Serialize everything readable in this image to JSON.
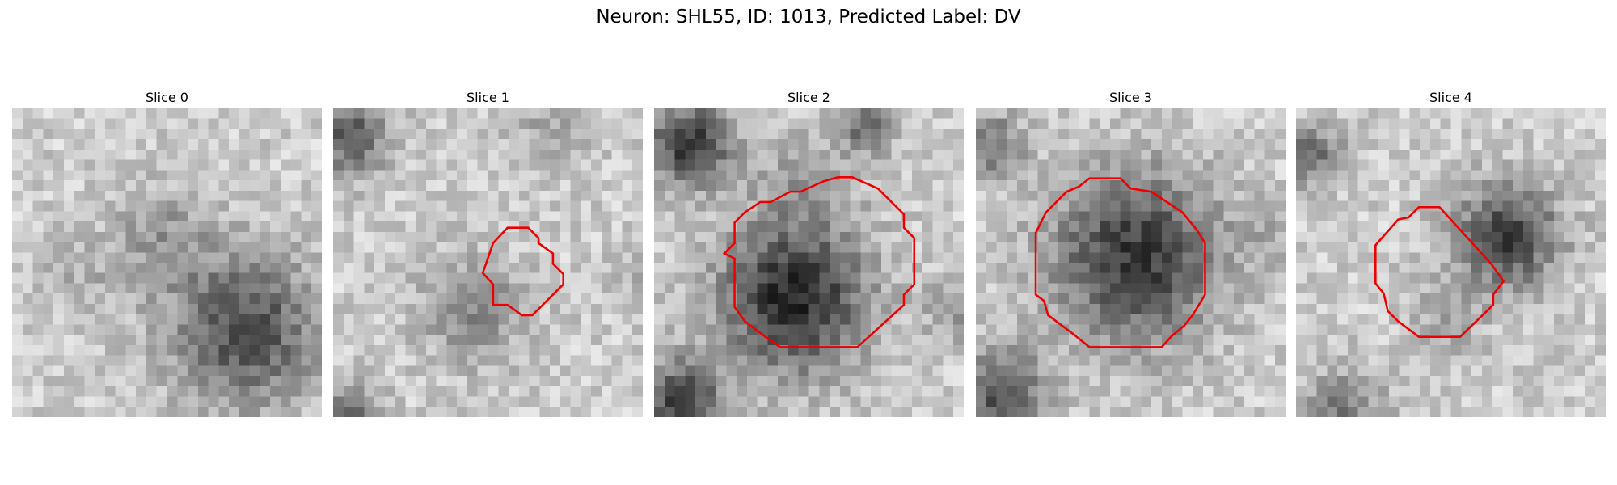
{
  "header": {
    "title": "Neuron: SHL55, ID: 1013, Predicted Label: DV"
  },
  "panels": [
    {
      "title": "Slice 0"
    },
    {
      "title": "Slice 1"
    },
    {
      "title": "Slice 2"
    },
    {
      "title": "Slice 3"
    },
    {
      "title": "Slice 4"
    }
  ]
}
